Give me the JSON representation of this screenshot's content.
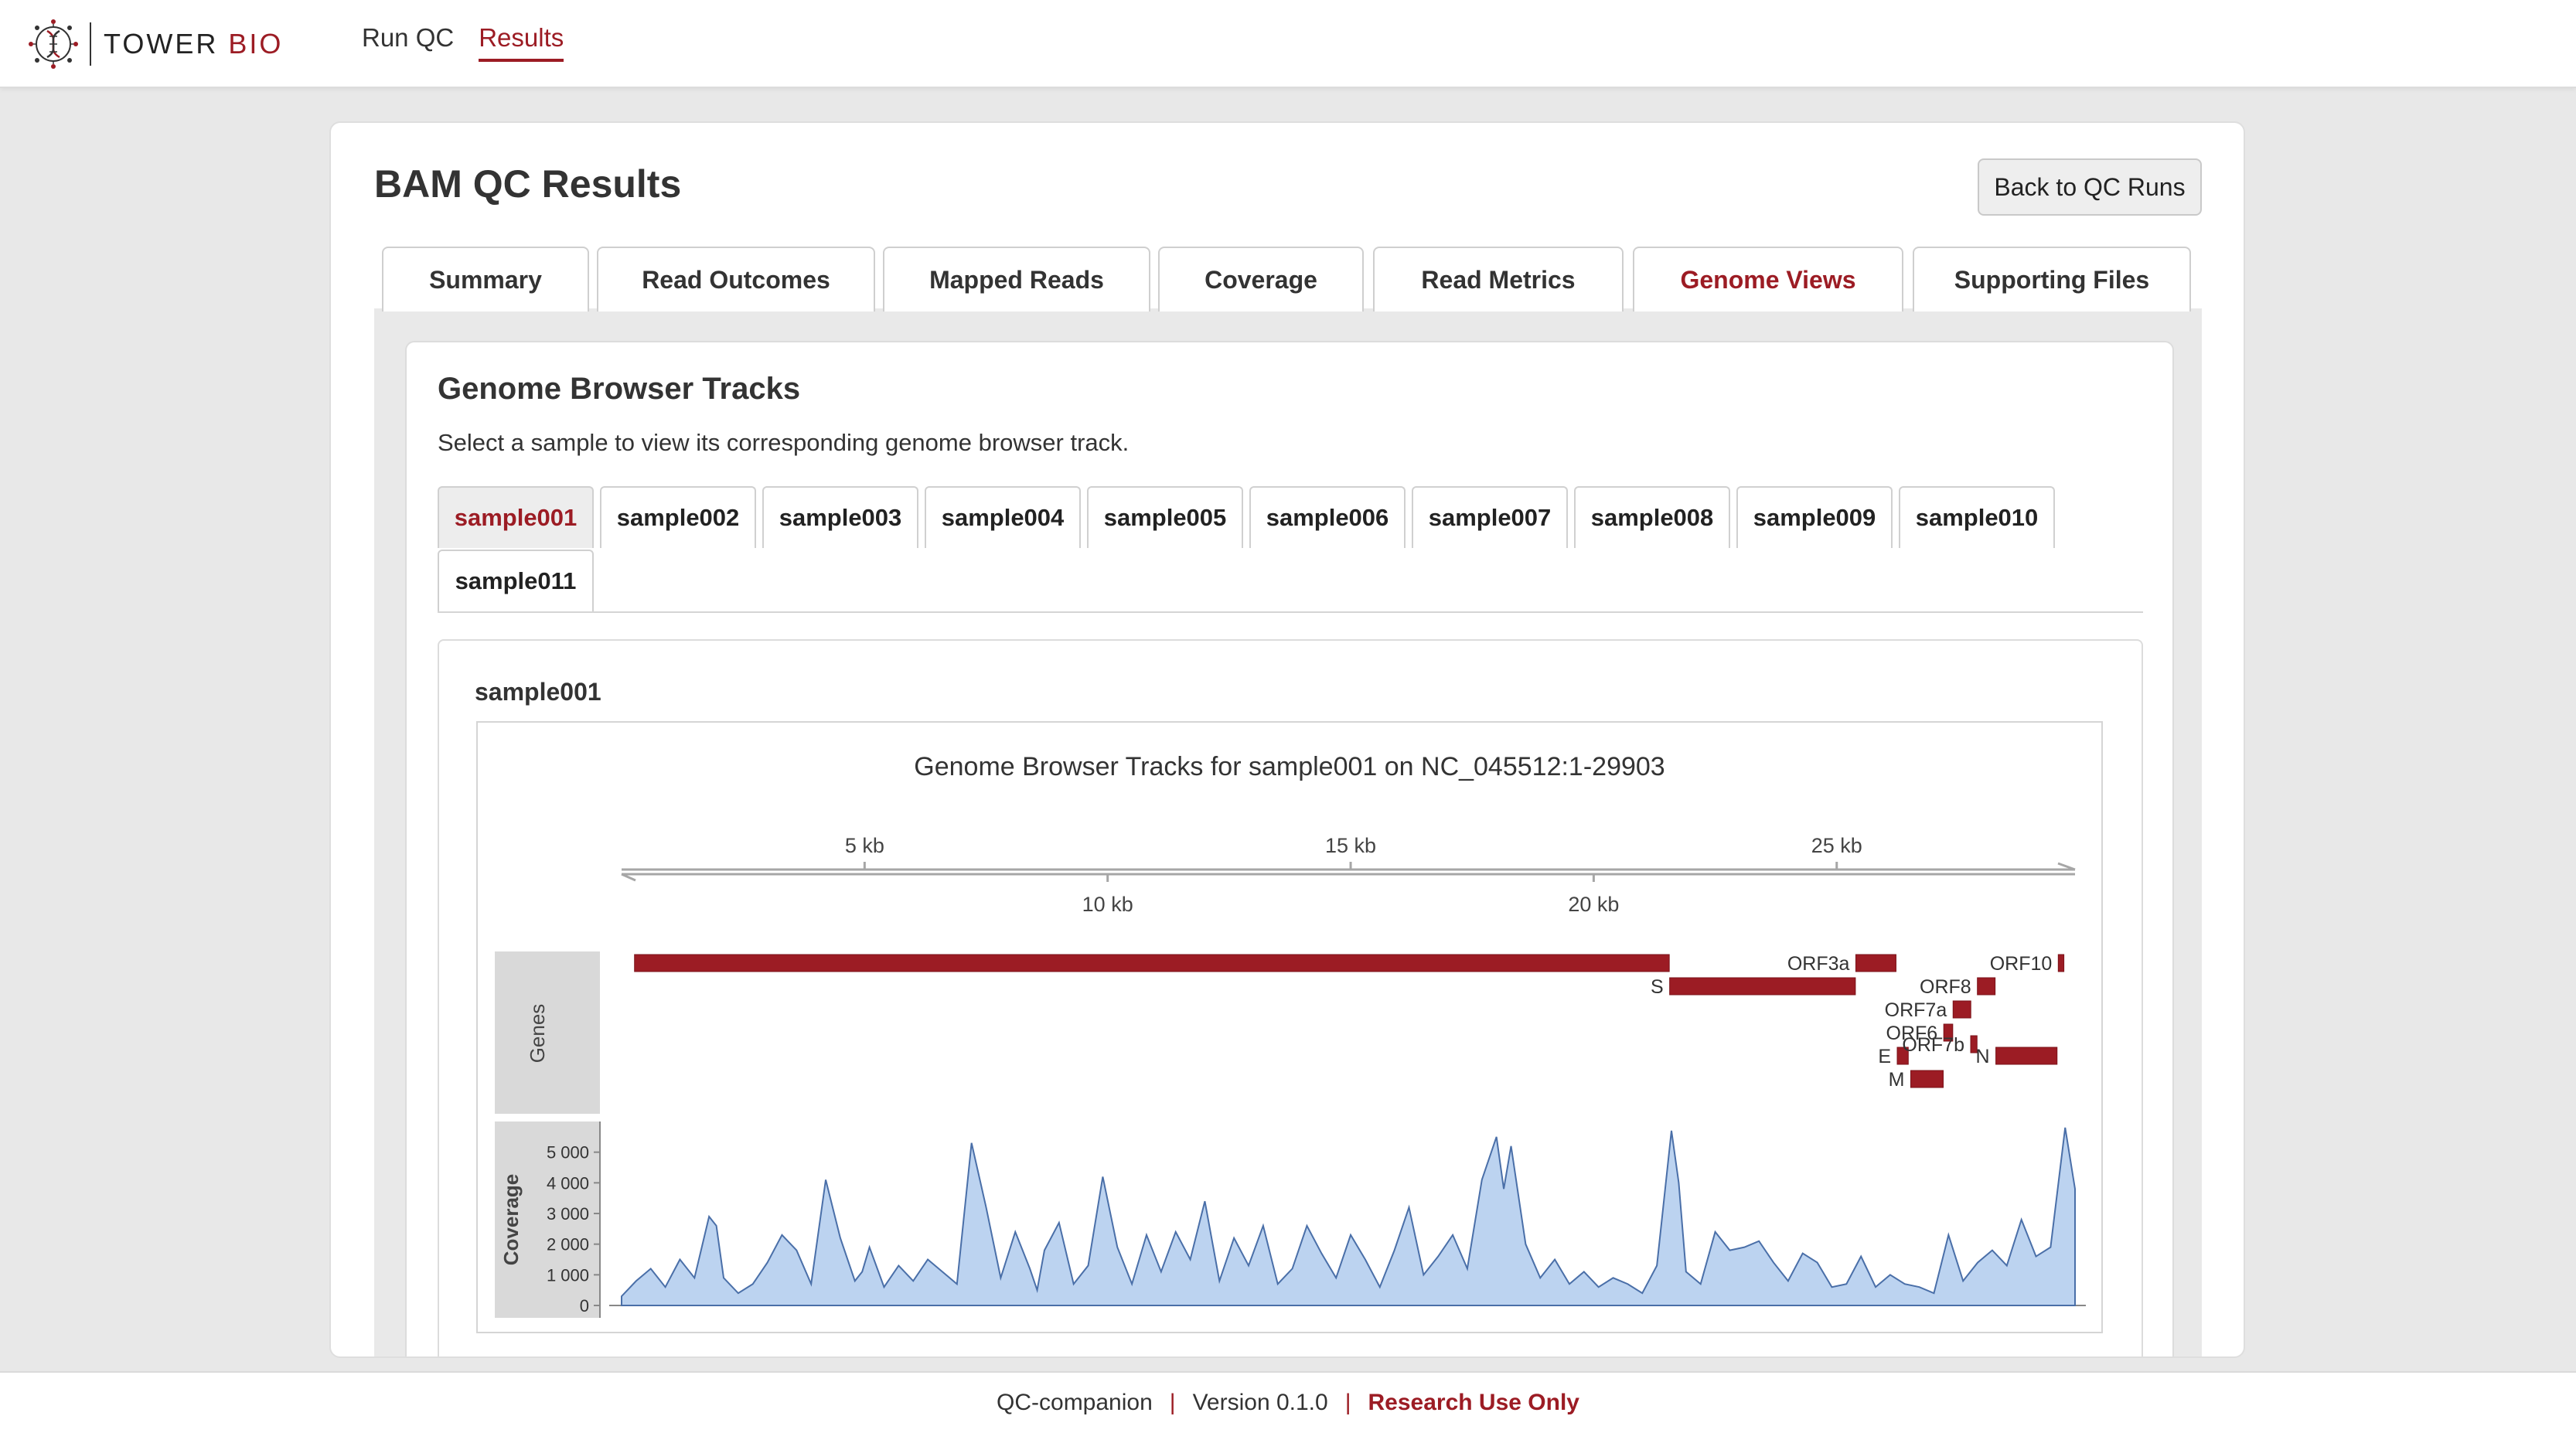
{
  "brand": {
    "name_main": "TOWER",
    "name_accent": "BIO",
    "accent_color": "#9c1c24"
  },
  "nav": {
    "items": [
      {
        "label": "Run QC",
        "active": false
      },
      {
        "label": "Results",
        "active": true
      }
    ]
  },
  "page": {
    "title": "BAM QC Results",
    "back_label": "Back to QC Runs"
  },
  "tabs": [
    {
      "label": "Summary",
      "active": false
    },
    {
      "label": "Read Outcomes",
      "active": false
    },
    {
      "label": "Mapped Reads",
      "active": false
    },
    {
      "label": "Coverage",
      "active": false
    },
    {
      "label": "Read Metrics",
      "active": false
    },
    {
      "label": "Genome Views",
      "active": true
    },
    {
      "label": "Supporting Files",
      "active": false
    }
  ],
  "genome_section": {
    "title": "Genome Browser Tracks",
    "description": "Select a sample to view its corresponding genome browser track.",
    "samples": [
      "sample001",
      "sample002",
      "sample003",
      "sample004",
      "sample005",
      "sample006",
      "sample007",
      "sample008",
      "sample009",
      "sample010",
      "sample011"
    ],
    "selected_sample": "sample001"
  },
  "chart_data": {
    "type": "area",
    "title": "Genome Browser Tracks for sample001 on NC_045512:1-29903",
    "region": {
      "chrom": "NC_045512",
      "start": 1,
      "end": 29903
    },
    "axis_ticks": [
      {
        "pos": 5000,
        "label": "5 kb"
      },
      {
        "pos": 10000,
        "label": "10 kb"
      },
      {
        "pos": 15000,
        "label": "15 kb"
      },
      {
        "pos": 20000,
        "label": "20 kb"
      },
      {
        "pos": 25000,
        "label": "25 kb"
      }
    ],
    "tracks": [
      "Genes",
      "Coverage"
    ],
    "genes": [
      {
        "name": "",
        "start": 266,
        "end": 21555
      },
      {
        "name": "S",
        "start": 21563,
        "end": 25384
      },
      {
        "name": "ORF3a",
        "start": 25393,
        "end": 26220
      },
      {
        "name": "E",
        "start": 26245,
        "end": 26472
      },
      {
        "name": "M",
        "start": 26523,
        "end": 27191
      },
      {
        "name": "ORF6",
        "start": 27202,
        "end": 27387
      },
      {
        "name": "ORF7a",
        "start": 27394,
        "end": 27759
      },
      {
        "name": "ORF7b",
        "start": 27756,
        "end": 27887
      },
      {
        "name": "ORF8",
        "start": 27894,
        "end": 28259
      },
      {
        "name": "N",
        "start": 28274,
        "end": 29533
      },
      {
        "name": "ORF10",
        "start": 29558,
        "end": 29674
      }
    ],
    "coverage": {
      "ylabel": "Coverage",
      "yticks": [
        0,
        1000,
        2000,
        3000,
        4000,
        5000
      ],
      "ytick_labels": [
        "0",
        "1 000",
        "2 000",
        "3 000",
        "4 000",
        "5 000"
      ],
      "ylim": [
        0,
        6000
      ],
      "x": [
        0,
        300,
        600,
        900,
        1200,
        1500,
        1800,
        1950,
        2100,
        2400,
        2700,
        3000,
        3300,
        3600,
        3900,
        4200,
        4500,
        4800,
        4950,
        5100,
        5400,
        5700,
        6000,
        6300,
        6600,
        6900,
        7200,
        7500,
        7800,
        8100,
        8400,
        8550,
        8700,
        9000,
        9300,
        9600,
        9900,
        10200,
        10500,
        10800,
        11100,
        11400,
        11700,
        12000,
        12300,
        12600,
        12900,
        13200,
        13500,
        13800,
        14100,
        14400,
        14700,
        15000,
        15300,
        15600,
        15900,
        16200,
        16500,
        16800,
        17100,
        17400,
        17700,
        18000,
        18150,
        18300,
        18600,
        18900,
        19200,
        19500,
        19800,
        20100,
        20400,
        20700,
        21000,
        21300,
        21600,
        21750,
        21900,
        22200,
        22500,
        22800,
        23100,
        23400,
        23700,
        24000,
        24300,
        24600,
        24900,
        25200,
        25500,
        25800,
        26100,
        26400,
        26700,
        27000,
        27300,
        27600,
        27900,
        28200,
        28500,
        28800,
        29100,
        29400,
        29700,
        29903
      ],
      "values": [
        300,
        800,
        1200,
        600,
        1500,
        900,
        2900,
        2600,
        900,
        400,
        700,
        1400,
        2300,
        1800,
        700,
        4100,
        2200,
        800,
        1100,
        1900,
        600,
        1300,
        800,
        1500,
        1100,
        700,
        5300,
        3200,
        900,
        2400,
        1200,
        500,
        1800,
        2700,
        700,
        1300,
        4200,
        1900,
        700,
        2300,
        1100,
        2400,
        1500,
        3400,
        800,
        2200,
        1300,
        2600,
        700,
        1200,
        2600,
        1700,
        900,
        2300,
        1500,
        600,
        1800,
        3200,
        1000,
        1600,
        2300,
        1200,
        4100,
        5500,
        3800,
        5200,
        2000,
        900,
        1500,
        700,
        1100,
        600,
        900,
        700,
        400,
        1300,
        5700,
        4000,
        1100,
        700,
        2400,
        1800,
        1900,
        2100,
        1400,
        800,
        1700,
        1400,
        600,
        700,
        1600,
        600,
        1000,
        700,
        600,
        400,
        2300,
        800,
        1400,
        1800,
        1300,
        2800,
        1600,
        1900,
        5800,
        3800
      ]
    }
  }
}
